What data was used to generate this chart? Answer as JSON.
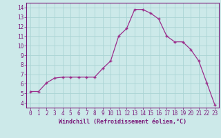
{
  "x": [
    0,
    1,
    2,
    3,
    4,
    5,
    6,
    7,
    8,
    9,
    10,
    11,
    12,
    13,
    14,
    15,
    16,
    17,
    18,
    19,
    20,
    21,
    22,
    23
  ],
  "y": [
    5.2,
    5.2,
    6.1,
    6.6,
    6.7,
    6.7,
    6.7,
    6.7,
    6.7,
    7.6,
    8.4,
    11.0,
    11.8,
    13.8,
    13.8,
    13.4,
    12.8,
    11.0,
    10.4,
    10.4,
    9.6,
    8.4,
    6.1,
    3.8
  ],
  "line_color": "#9b2d8b",
  "marker": "+",
  "marker_size": 3.5,
  "marker_lw": 1.0,
  "background_color": "#cce9e9",
  "grid_color": "#aad4d4",
  "xlabel": "Windchill (Refroidissement éolien,°C)",
  "xlabel_fontsize": 6.0,
  "xlim": [
    -0.5,
    23.5
  ],
  "ylim": [
    3.5,
    14.5
  ],
  "yticks": [
    4,
    5,
    6,
    7,
    8,
    9,
    10,
    11,
    12,
    13,
    14
  ],
  "xticks": [
    0,
    1,
    2,
    3,
    4,
    5,
    6,
    7,
    8,
    9,
    10,
    11,
    12,
    13,
    14,
    15,
    16,
    17,
    18,
    19,
    20,
    21,
    22,
    23
  ],
  "tick_fontsize": 5.5,
  "tick_color": "#7a1a7a",
  "spine_color": "#7a1a7a",
  "line_width": 0.9
}
